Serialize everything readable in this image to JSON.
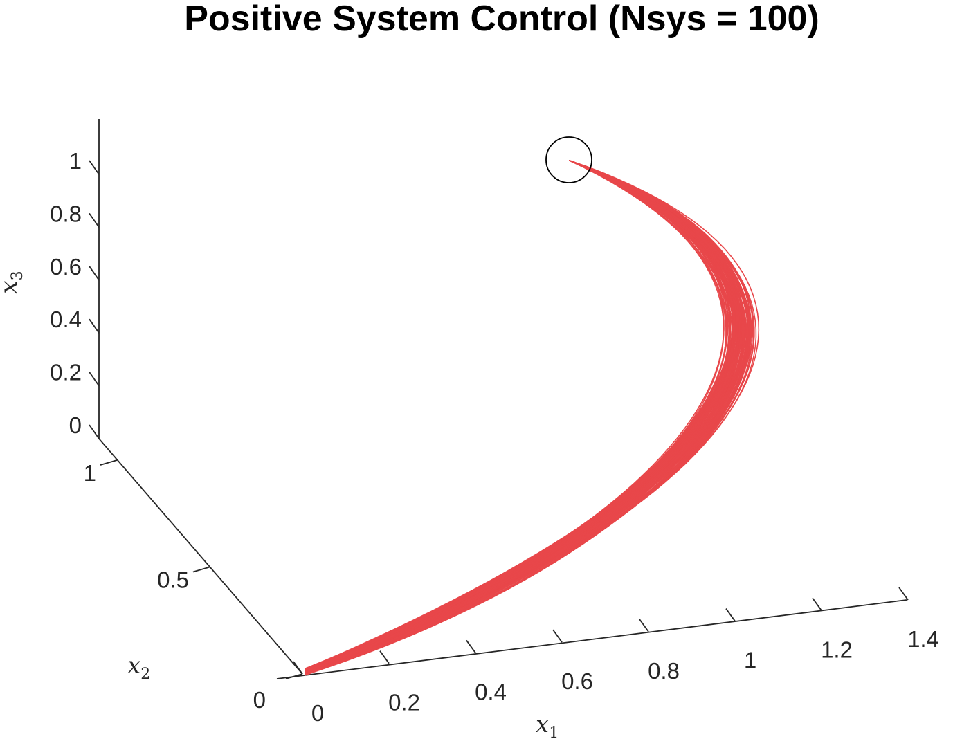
{
  "chart_data": {
    "type": "line",
    "projection": "3d",
    "title": "Positive System Control (Nsys = 100)",
    "xlabel": "x",
    "xlabel_sub": "1",
    "ylabel": "x",
    "ylabel_sub": "2",
    "zlabel": "x",
    "zlabel_sub": "3",
    "xlim": [
      0,
      1.4
    ],
    "ylim": [
      0,
      1.2
    ],
    "zlim": [
      0,
      1.1
    ],
    "xticks": [
      "0",
      "0.2",
      "0.4",
      "0.6",
      "0.8",
      "1",
      "1.2",
      "1.4"
    ],
    "yticks": [
      "0",
      "0.5",
      "1"
    ],
    "zticks": [
      "0",
      "0.2",
      "0.4",
      "0.6",
      "0.8",
      "1"
    ],
    "grid": false,
    "legend": "none",
    "series_color": "#e8474a",
    "n_trajectories": 100,
    "start_point": {
      "x": 0,
      "y": 0,
      "z": 1
    },
    "end_point": {
      "x": 0,
      "y": 0,
      "z": 0
    },
    "representative_trajectory": [
      {
        "x": 0.0,
        "y": 0.0,
        "z": 1.0
      },
      {
        "x": 0.3,
        "y": 0.3,
        "z": 0.85
      },
      {
        "x": 0.6,
        "y": 0.55,
        "z": 0.65
      },
      {
        "x": 0.9,
        "y": 0.75,
        "z": 0.45
      },
      {
        "x": 1.1,
        "y": 0.8,
        "z": 0.3
      },
      {
        "x": 1.2,
        "y": 0.75,
        "z": 0.18
      },
      {
        "x": 1.15,
        "y": 0.6,
        "z": 0.1
      },
      {
        "x": 0.95,
        "y": 0.45,
        "z": 0.05
      },
      {
        "x": 0.65,
        "y": 0.3,
        "z": 0.03
      },
      {
        "x": 0.35,
        "y": 0.15,
        "z": 0.01
      },
      {
        "x": 0.0,
        "y": 0.0,
        "z": 0.0
      }
    ],
    "markers": [
      {
        "type": "circle",
        "at": "start_point"
      }
    ]
  }
}
